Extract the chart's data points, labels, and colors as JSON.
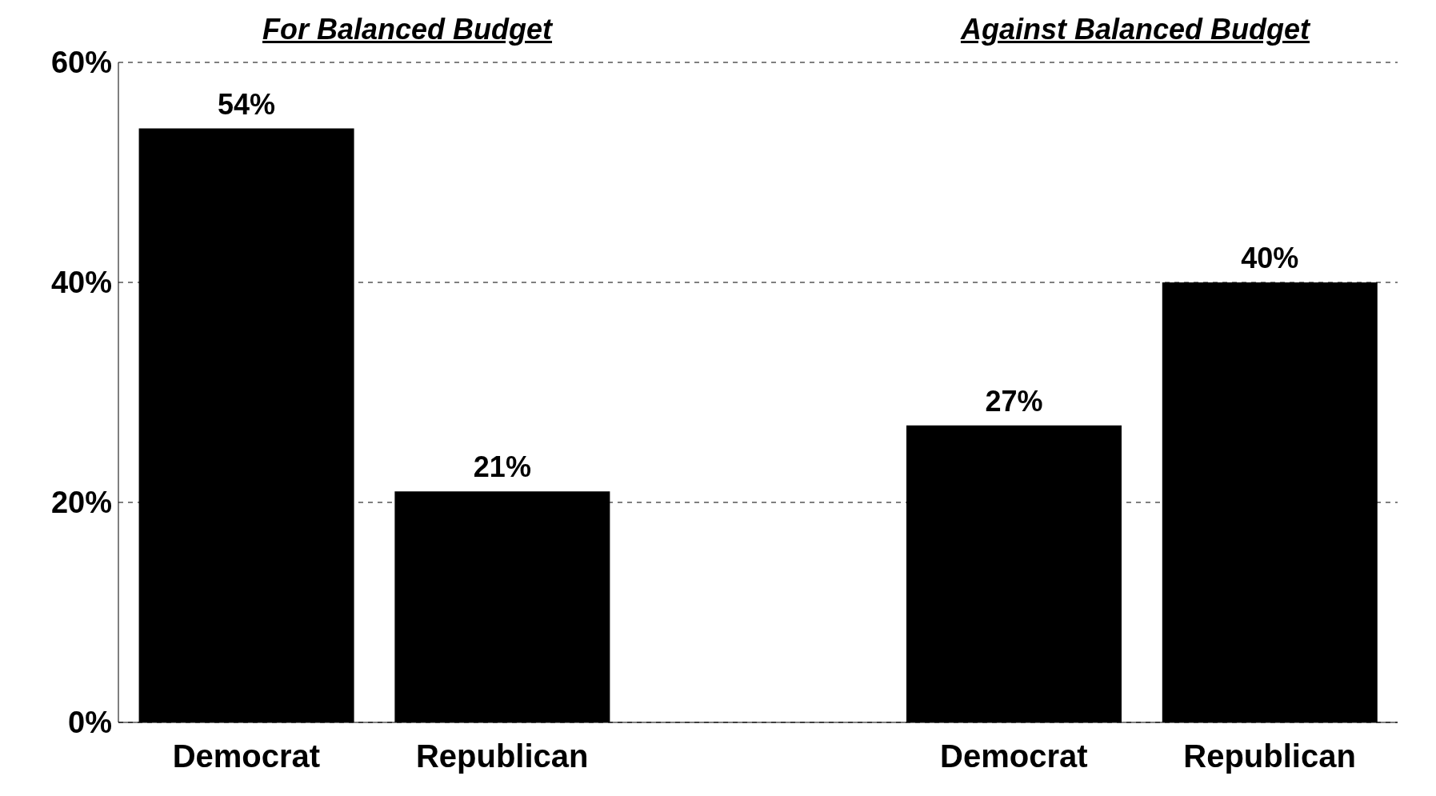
{
  "chart_data": {
    "type": "bar",
    "categories": [
      "Democrat",
      "Republican",
      null,
      "Democrat",
      "Republican"
    ],
    "values": [
      54,
      21,
      null,
      27,
      40
    ],
    "value_labels": [
      "54%",
      "21%",
      null,
      "27%",
      "40%"
    ],
    "color": "#000000",
    "ylim": [
      0,
      60
    ],
    "yticks": [
      {
        "value": 0,
        "label": "0%"
      },
      {
        "value": 20,
        "label": "20%"
      },
      {
        "value": 40,
        "label": "40%"
      },
      {
        "value": 60,
        "label": "60%"
      }
    ],
    "grid": "y",
    "annotations": [
      "For Balanced Budget",
      "Against Balanced Budget"
    ]
  }
}
